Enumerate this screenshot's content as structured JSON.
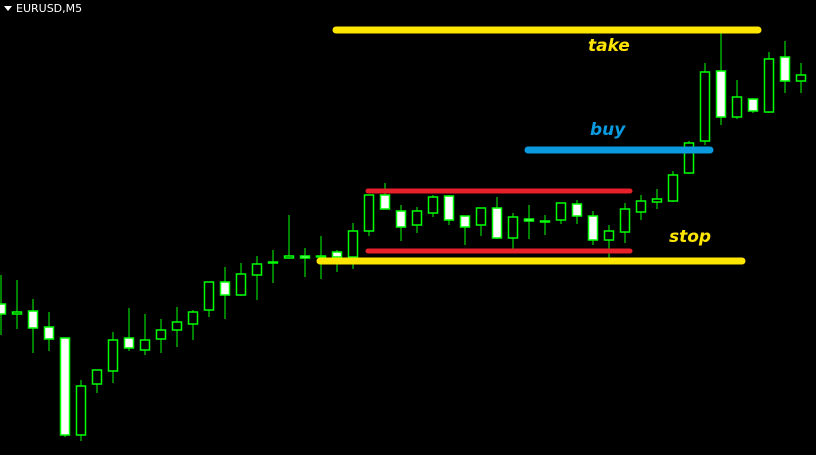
{
  "header": {
    "symbol_label": "EURUSD,M5",
    "menu_icon": "triangle-down-icon"
  },
  "chart_data": {
    "type": "candlestick",
    "title": "",
    "xlabel": "",
    "ylabel": "",
    "ylim": [
      0,
      455
    ],
    "y_units": "relative price (no axis printed)",
    "grid": false,
    "colors": {
      "background": "#000000",
      "outline": "#00ff00",
      "bear_fill": "#ffffff",
      "bull_fill": "#000000"
    },
    "candles": [
      {
        "o": 151,
        "h": 180,
        "l": 120,
        "c": 141
      },
      {
        "o": 141,
        "h": 175,
        "l": 126,
        "c": 143
      },
      {
        "o": 144,
        "h": 156,
        "l": 102,
        "c": 127
      },
      {
        "o": 128,
        "h": 143,
        "l": 104,
        "c": 116
      },
      {
        "o": 117,
        "h": 117,
        "l": 18,
        "c": 20
      },
      {
        "o": 20,
        "h": 75,
        "l": 14,
        "c": 69
      },
      {
        "o": 71,
        "h": 85,
        "l": 62,
        "c": 85
      },
      {
        "o": 84,
        "h": 123,
        "l": 72,
        "c": 115
      },
      {
        "o": 117,
        "h": 147,
        "l": 104,
        "c": 107
      },
      {
        "o": 105,
        "h": 141,
        "l": 100,
        "c": 115
      },
      {
        "o": 116,
        "h": 136,
        "l": 102,
        "c": 125
      },
      {
        "o": 125,
        "h": 148,
        "l": 108,
        "c": 133
      },
      {
        "o": 131,
        "h": 145,
        "l": 115,
        "c": 143
      },
      {
        "o": 145,
        "h": 173,
        "l": 138,
        "c": 173
      },
      {
        "o": 173,
        "h": 188,
        "l": 136,
        "c": 160
      },
      {
        "o": 160,
        "h": 192,
        "l": 159,
        "c": 181
      },
      {
        "o": 180,
        "h": 199,
        "l": 155,
        "c": 191
      },
      {
        "o": 192,
        "h": 205,
        "l": 172,
        "c": 193
      },
      {
        "o": 197,
        "h": 240,
        "l": 197,
        "c": 199
      },
      {
        "o": 199,
        "h": 207,
        "l": 178,
        "c": 197
      },
      {
        "o": 199,
        "h": 219,
        "l": 176,
        "c": 199
      },
      {
        "o": 203,
        "h": 205,
        "l": 183,
        "c": 198
      },
      {
        "o": 198,
        "h": 232,
        "l": 186,
        "c": 224
      },
      {
        "o": 224,
        "h": 260,
        "l": 219,
        "c": 260
      },
      {
        "o": 260,
        "h": 272,
        "l": 246,
        "c": 246
      },
      {
        "o": 244,
        "h": 250,
        "l": 214,
        "c": 228
      },
      {
        "o": 230,
        "h": 248,
        "l": 222,
        "c": 244
      },
      {
        "o": 242,
        "h": 260,
        "l": 238,
        "c": 258
      },
      {
        "o": 259,
        "h": 260,
        "l": 230,
        "c": 235
      },
      {
        "o": 239,
        "h": 239,
        "l": 210,
        "c": 228
      },
      {
        "o": 230,
        "h": 247,
        "l": 219,
        "c": 247
      },
      {
        "o": 247,
        "h": 258,
        "l": 216,
        "c": 217
      },
      {
        "o": 217,
        "h": 242,
        "l": 206,
        "c": 238
      },
      {
        "o": 236,
        "h": 250,
        "l": 216,
        "c": 234
      },
      {
        "o": 234,
        "h": 240,
        "l": 220,
        "c": 234
      },
      {
        "o": 235,
        "h": 252,
        "l": 231,
        "c": 252
      },
      {
        "o": 251,
        "h": 255,
        "l": 231,
        "c": 239
      },
      {
        "o": 239,
        "h": 244,
        "l": 210,
        "c": 215
      },
      {
        "o": 215,
        "h": 230,
        "l": 196,
        "c": 224
      },
      {
        "o": 223,
        "h": 252,
        "l": 212,
        "c": 246
      },
      {
        "o": 243,
        "h": 260,
        "l": 235,
        "c": 254
      },
      {
        "o": 253,
        "h": 266,
        "l": 246,
        "c": 256
      },
      {
        "o": 254,
        "h": 284,
        "l": 253,
        "c": 280
      },
      {
        "o": 282,
        "h": 314,
        "l": 281,
        "c": 312
      },
      {
        "o": 314,
        "h": 392,
        "l": 310,
        "c": 383
      },
      {
        "o": 384,
        "h": 422,
        "l": 330,
        "c": 338
      },
      {
        "o": 338,
        "h": 375,
        "l": 336,
        "c": 358
      },
      {
        "o": 356,
        "h": 356,
        "l": 342,
        "c": 344
      },
      {
        "o": 343,
        "h": 403,
        "l": 342,
        "c": 396
      },
      {
        "o": 398,
        "h": 414,
        "l": 362,
        "c": 374
      },
      {
        "o": 374,
        "h": 392,
        "l": 362,
        "c": 380
      }
    ],
    "annotations": [
      {
        "name": "take-line",
        "label": "take",
        "level": 425,
        "from_candle": 21,
        "to_candle": 47,
        "color": "#ffe600"
      },
      {
        "name": "buy-line",
        "label": "buy",
        "level": 305,
        "from_candle": 33,
        "to_candle": 44,
        "color": "#0a9ae0"
      },
      {
        "name": "range-top-line",
        "label": "",
        "level": 264,
        "from_candle": 23,
        "to_candle": 39,
        "color": "#e8202a"
      },
      {
        "name": "range-bottom-line",
        "label": "",
        "level": 204,
        "from_candle": 23,
        "to_candle": 39,
        "color": "#e8202a"
      },
      {
        "name": "stop-line",
        "label": "stop",
        "level": 194,
        "from_candle": 20,
        "to_candle": 46,
        "color": "#ffe600"
      }
    ]
  }
}
